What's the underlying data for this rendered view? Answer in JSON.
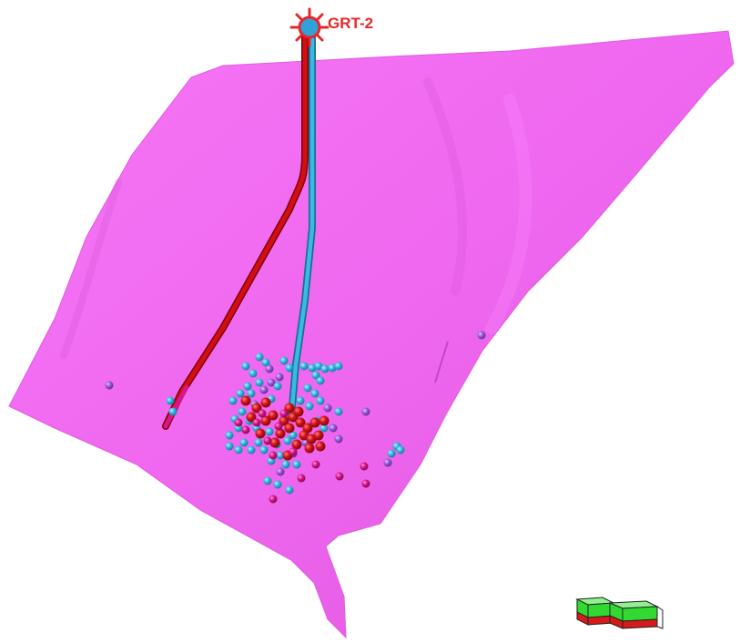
{
  "well": {
    "name": "GRT-2"
  },
  "colors": {
    "background": "#ffffff",
    "fault_surface": "#f06cf0",
    "well_track_1": "#d40d12",
    "well_track_2": "#2ea3d8",
    "well_symbol": "#e8262a",
    "event_cyan": "#35b6e0",
    "event_red": "#d3131a",
    "event_purple": "#9a5ad8",
    "event_magenta": "#d8158a",
    "axis_box_green": "#33d933",
    "axis_box_red": "#d61a1a"
  },
  "icons": {
    "well_symbol": "well-head-sun-icon",
    "orientation_box": "orientation-cube-icon"
  }
}
